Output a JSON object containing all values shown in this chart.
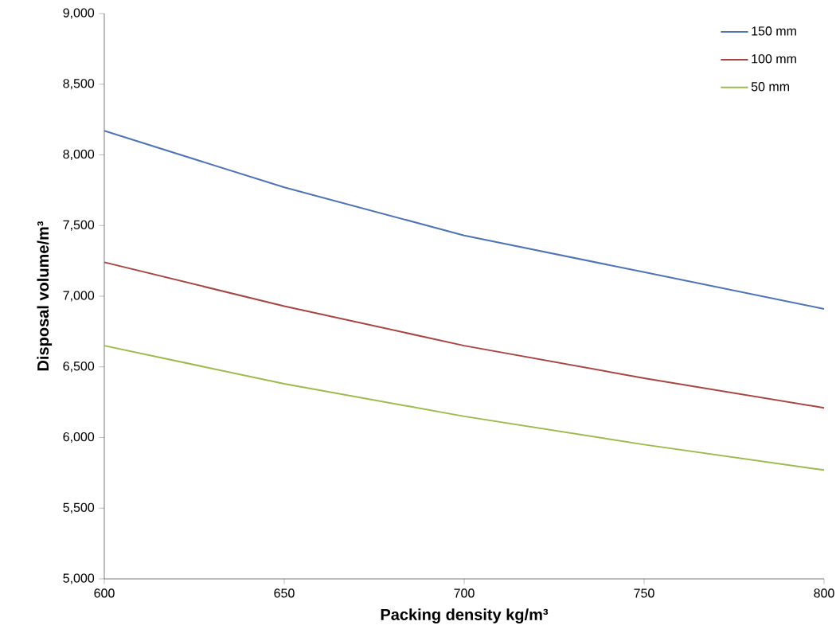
{
  "chart_data": {
    "type": "line",
    "xlabel": "Packing density kg/m³",
    "ylabel": "Disposal volume/m³",
    "x": [
      600,
      650,
      700,
      750,
      800
    ],
    "series": [
      {
        "name": "150 mm",
        "color": "#4f73b8",
        "values": [
          8170,
          7770,
          7430,
          7170,
          6910
        ]
      },
      {
        "name": "100 mm",
        "color": "#a94442",
        "values": [
          7240,
          6930,
          6650,
          6420,
          6210
        ]
      },
      {
        "name": "50 mm",
        "color": "#9bbb4c",
        "values": [
          6650,
          6380,
          6150,
          5950,
          5770
        ]
      }
    ],
    "xlim": [
      600,
      800
    ],
    "xticks": [
      600,
      650,
      700,
      750,
      800
    ],
    "ylim": [
      5000,
      9000
    ],
    "yticks": [
      {
        "value": 5000,
        "label": "5,000"
      },
      {
        "value": 5500,
        "label": "5,500"
      },
      {
        "value": 6000,
        "label": "6,000"
      },
      {
        "value": 6500,
        "label": "6,500"
      },
      {
        "value": 7000,
        "label": "7,000"
      },
      {
        "value": 7500,
        "label": "7,500"
      },
      {
        "value": 8000,
        "label": "8,000"
      },
      {
        "value": 8500,
        "label": "8,500"
      },
      {
        "value": 9000,
        "label": "9,000"
      }
    ],
    "grid": false,
    "legend": "top right",
    "marker": "none",
    "line_style": "solid"
  }
}
